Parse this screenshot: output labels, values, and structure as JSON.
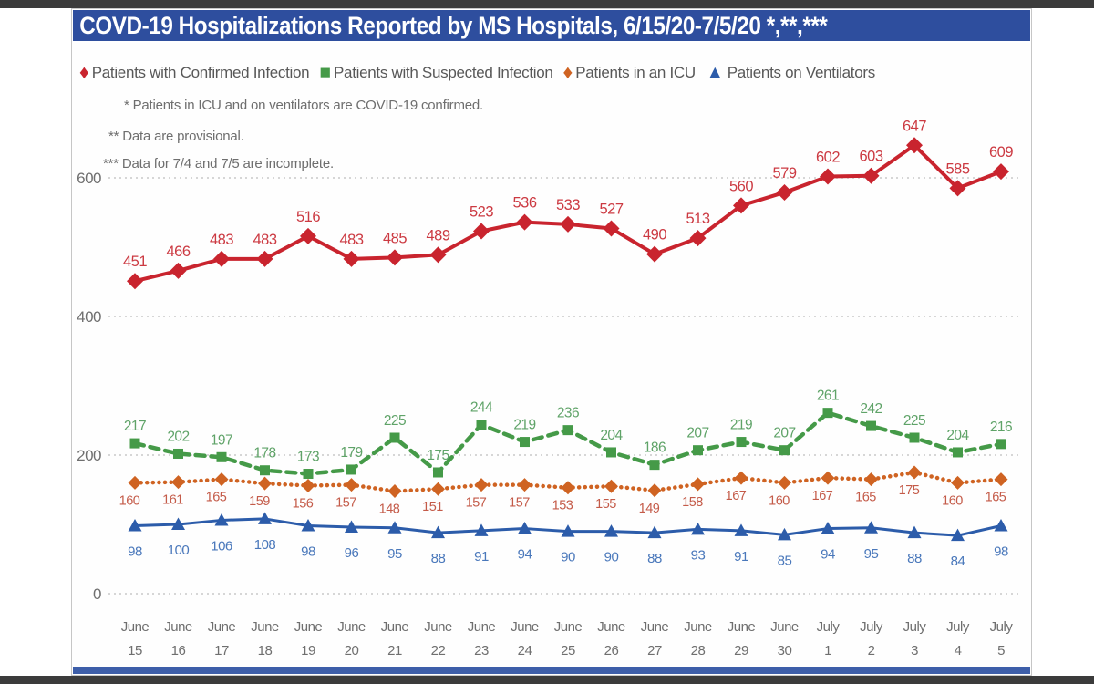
{
  "header": {
    "title": "COVD-19 Hospitalizations Reported by MS Hospitals, 6/15/20-7/5/20 *,**,***",
    "bar_color": "#2e4e9e"
  },
  "footnotes": [
    "* Patients in ICU and on ventilators are COVID-19 confirmed.",
    "** Data are provisional.",
    "*** Data for 7/4 and 7/5 are incomplete."
  ],
  "chart_data": {
    "type": "line",
    "title": "COVD-19 Hospitalizations Reported by MS Hospitals, 6/15/20-7/5/20 *,**,***",
    "xlabel": "",
    "ylabel": "",
    "ylim": [
      0,
      700
    ],
    "yticks": [
      0,
      200,
      400,
      600
    ],
    "grid": "horizontal-dotted",
    "grid_color": "#c9c9c9",
    "axis_text_color": "#6f6f6f",
    "legend_position": "top",
    "x_months": [
      "June",
      "June",
      "June",
      "June",
      "June",
      "June",
      "June",
      "June",
      "June",
      "June",
      "June",
      "June",
      "June",
      "June",
      "June",
      "June",
      "July",
      "July",
      "July",
      "July",
      "July"
    ],
    "x_days": [
      "15",
      "16",
      "17",
      "18",
      "19",
      "20",
      "21",
      "22",
      "23",
      "24",
      "25",
      "26",
      "27",
      "28",
      "29",
      "30",
      "1",
      "2",
      "3",
      "4",
      "5"
    ],
    "series": [
      {
        "name": "Patients with Confirmed Infection",
        "color": "#c9242e",
        "label_color": "#cc3a42",
        "marker": "diamond",
        "line": "solid",
        "values": [
          451,
          466,
          483,
          483,
          516,
          483,
          485,
          489,
          523,
          536,
          533,
          527,
          490,
          513,
          560,
          579,
          602,
          603,
          647,
          585,
          609
        ]
      },
      {
        "name": "Patients with Suspected Infection",
        "color": "#459a48",
        "label_color": "#5fa368",
        "marker": "square",
        "line": "dashed",
        "values": [
          217,
          202,
          197,
          178,
          173,
          179,
          225,
          175,
          244,
          219,
          236,
          204,
          186,
          207,
          219,
          207,
          261,
          242,
          225,
          204,
          216
        ]
      },
      {
        "name": "Patients in an ICU",
        "color": "#cf6322",
        "label_color": "#c45b49",
        "marker": "diamond",
        "line": "dotted",
        "values": [
          160,
          161,
          165,
          159,
          156,
          157,
          148,
          151,
          157,
          157,
          153,
          155,
          149,
          158,
          167,
          160,
          167,
          165,
          175,
          160,
          165
        ]
      },
      {
        "name": "Patients on Ventilators",
        "color": "#2c5caa",
        "label_color": "#4a78bb",
        "marker": "triangle",
        "line": "solid",
        "values": [
          98,
          100,
          106,
          108,
          98,
          96,
          95,
          88,
          91,
          94,
          90,
          90,
          88,
          93,
          91,
          85,
          94,
          95,
          88,
          84,
          98
        ]
      }
    ]
  }
}
